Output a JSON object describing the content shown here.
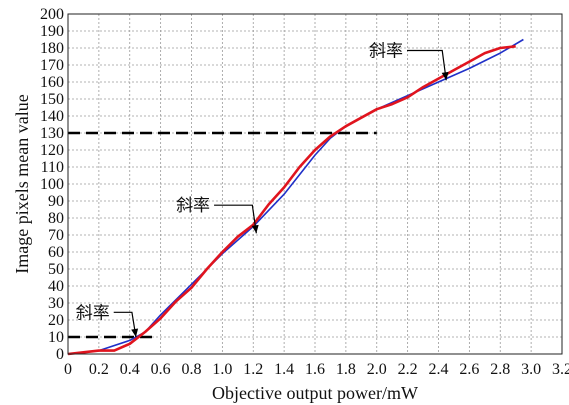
{
  "chart_data": {
    "type": "line",
    "xlabel": "Objective output power/mW",
    "ylabel": "Image pixels mean value",
    "xlim": [
      0,
      3.2
    ],
    "ylim": [
      0,
      200
    ],
    "x_ticks": [
      0,
      0.2,
      0.4,
      0.6,
      0.8,
      1.0,
      1.2,
      1.4,
      1.6,
      1.8,
      2.0,
      2.2,
      2.4,
      2.6,
      2.8,
      3.0,
      3.2
    ],
    "x_tick_labels": [
      "0",
      "0.2",
      "0.4",
      "0.6",
      "0.8",
      "1.0",
      "1.2",
      "1.4",
      "1.6",
      "1.8",
      "2.0",
      "2.2",
      "2.4",
      "2.6",
      "2.8",
      "3.0",
      "3.2"
    ],
    "y_ticks": [
      0,
      10,
      20,
      30,
      40,
      50,
      60,
      70,
      80,
      90,
      100,
      110,
      120,
      130,
      140,
      150,
      160,
      170,
      180,
      190,
      200
    ],
    "grid": true,
    "series": [
      {
        "color": "#e0141e",
        "x": [
          0,
          0.1,
          0.2,
          0.3,
          0.4,
          0.5,
          0.6,
          0.7,
          0.8,
          0.9,
          1.0,
          1.1,
          1.2,
          1.3,
          1.4,
          1.5,
          1.6,
          1.7,
          1.8,
          1.9,
          2.0,
          2.1,
          2.2,
          2.3,
          2.4,
          2.5,
          2.6,
          2.7,
          2.8,
          2.9
        ],
        "y": [
          0,
          1,
          2,
          2,
          6,
          13,
          21,
          31,
          39,
          50,
          60,
          69,
          76,
          88,
          98,
          110,
          120,
          128,
          134,
          139,
          144,
          147,
          151,
          157,
          162,
          167,
          172,
          177,
          180,
          181
        ]
      },
      {
        "color": "#2030c8",
        "x": [
          0,
          0.2,
          0.4,
          0.5,
          0.6,
          0.8,
          1.0,
          1.2,
          1.4,
          1.6,
          1.7,
          1.8,
          2.0,
          2.2,
          2.4,
          2.6,
          2.8,
          2.95
        ],
        "y": [
          0,
          2,
          8,
          13,
          23,
          41,
          59,
          75,
          94,
          117,
          127,
          134,
          144,
          152,
          160,
          168,
          177,
          185
        ]
      }
    ],
    "reference_lines": [
      {
        "y": 130,
        "x_from": 0,
        "x_to": 2.0
      },
      {
        "y": 10,
        "x_from": 0,
        "x_to": 0.55
      }
    ],
    "annotations": [
      {
        "text": "斜率",
        "label_x": 0.05,
        "label_y": 21,
        "arrow_to_x": 0.44,
        "arrow_to_y": 10
      },
      {
        "text": "斜率",
        "label_x": 0.7,
        "label_y": 84,
        "arrow_to_x": 1.22,
        "arrow_to_y": 71
      },
      {
        "text": "斜率",
        "label_x": 1.95,
        "label_y": 175,
        "arrow_to_x": 2.45,
        "arrow_to_y": 161
      }
    ]
  }
}
